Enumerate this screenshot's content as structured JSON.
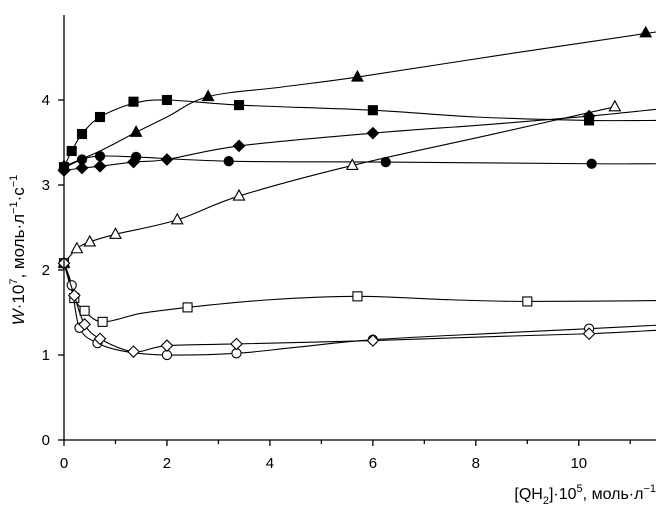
{
  "chart_data": {
    "type": "scatter",
    "title": "",
    "xlabel": {
      "main": "[QH",
      "sub": "2",
      "mid": "]·10",
      "sup": "5",
      "unit": ", моль·л",
      "unit_sup": "−1"
    },
    "ylabel": {
      "main": "W",
      "mid": "·10",
      "sup": "7",
      "unit1": ", моль·л",
      "unit1_sup": "−1",
      "unit2": "·с",
      "unit2_sup": "−1"
    },
    "xlim": [
      0,
      11.5
    ],
    "ylim": [
      0,
      5
    ],
    "xticks": [
      0,
      2,
      4,
      6,
      8,
      10
    ],
    "yticks": [
      0,
      1,
      2,
      3,
      4
    ],
    "grid": false,
    "legend": "none",
    "series": [
      {
        "marker": "filled-triangle",
        "points": [
          [
            0,
            3.22
          ],
          [
            1.4,
            3.62
          ],
          [
            2.8,
            4.04
          ],
          [
            5.7,
            4.27
          ],
          [
            11.3,
            4.79
          ]
        ],
        "curve": [
          [
            0,
            3.22
          ],
          [
            0.7,
            3.4
          ],
          [
            1.4,
            3.62
          ],
          [
            2.0,
            3.8
          ],
          [
            2.8,
            4.04
          ],
          [
            4.2,
            4.15
          ],
          [
            5.7,
            4.27
          ],
          [
            8.5,
            4.53
          ],
          [
            11.5,
            4.8
          ]
        ]
      },
      {
        "marker": "filled-square",
        "points": [
          [
            0,
            3.21
          ],
          [
            0.15,
            3.4
          ],
          [
            0.35,
            3.6
          ],
          [
            0.7,
            3.8
          ],
          [
            1.35,
            3.98
          ],
          [
            2.0,
            4.0
          ],
          [
            3.4,
            3.94
          ],
          [
            6.0,
            3.88
          ],
          [
            10.2,
            3.76
          ]
        ],
        "curve": [
          [
            0,
            3.21
          ],
          [
            0.15,
            3.4
          ],
          [
            0.35,
            3.6
          ],
          [
            0.7,
            3.8
          ],
          [
            1.35,
            3.96
          ],
          [
            2.0,
            4.0
          ],
          [
            3.4,
            3.94
          ],
          [
            6.0,
            3.88
          ],
          [
            8.0,
            3.8
          ],
          [
            10.2,
            3.76
          ],
          [
            11.5,
            3.76
          ]
        ]
      },
      {
        "marker": "filled-diamond",
        "points": [
          [
            0,
            3.17
          ],
          [
            0.35,
            3.2
          ],
          [
            0.7,
            3.22
          ],
          [
            1.35,
            3.27
          ],
          [
            2.0,
            3.3
          ],
          [
            3.4,
            3.46
          ],
          [
            6.0,
            3.61
          ],
          [
            10.2,
            3.81
          ]
        ],
        "curve": [
          [
            0,
            3.17
          ],
          [
            0.35,
            3.2
          ],
          [
            0.7,
            3.22
          ],
          [
            1.35,
            3.27
          ],
          [
            2.0,
            3.3
          ],
          [
            3.4,
            3.46
          ],
          [
            6.0,
            3.61
          ],
          [
            8.2,
            3.71
          ],
          [
            10.2,
            3.81
          ],
          [
            11.5,
            3.89
          ]
        ]
      },
      {
        "marker": "filled-circle",
        "points": [
          [
            0,
            3.2
          ],
          [
            0.35,
            3.3
          ],
          [
            0.7,
            3.34
          ],
          [
            1.4,
            3.33
          ],
          [
            3.2,
            3.28
          ],
          [
            6.25,
            3.27
          ],
          [
            10.25,
            3.25
          ]
        ],
        "curve": [
          [
            0,
            3.2
          ],
          [
            0.35,
            3.3
          ],
          [
            0.7,
            3.34
          ],
          [
            1.4,
            3.33
          ],
          [
            3.2,
            3.28
          ],
          [
            6.25,
            3.27
          ],
          [
            10.25,
            3.25
          ],
          [
            11.5,
            3.25
          ]
        ]
      },
      {
        "marker": "open-triangle",
        "points": [
          [
            0,
            2.08
          ],
          [
            0.25,
            2.25
          ],
          [
            0.5,
            2.33
          ],
          [
            1.0,
            2.42
          ],
          [
            2.2,
            2.59
          ],
          [
            3.4,
            2.87
          ],
          [
            5.6,
            3.23
          ],
          [
            10.7,
            3.92
          ]
        ],
        "curve": [
          [
            0,
            2.08
          ],
          [
            0.25,
            2.25
          ],
          [
            0.5,
            2.33
          ],
          [
            1.0,
            2.42
          ],
          [
            2.2,
            2.59
          ],
          [
            3.4,
            2.87
          ],
          [
            5.6,
            3.23
          ],
          [
            8.2,
            3.58
          ],
          [
            10.7,
            3.92
          ]
        ]
      },
      {
        "marker": "open-square",
        "points": [
          [
            0,
            2.08
          ],
          [
            0.2,
            1.67
          ],
          [
            0.4,
            1.52
          ],
          [
            0.75,
            1.39
          ],
          [
            2.4,
            1.56
          ],
          [
            5.7,
            1.69
          ],
          [
            9.0,
            1.63
          ]
        ],
        "curve": [
          [
            0,
            2.08
          ],
          [
            0.2,
            1.67
          ],
          [
            0.4,
            1.52
          ],
          [
            0.75,
            1.39
          ],
          [
            1.5,
            1.49
          ],
          [
            2.4,
            1.56
          ],
          [
            4.0,
            1.65
          ],
          [
            5.7,
            1.69
          ],
          [
            7.5,
            1.65
          ],
          [
            9.0,
            1.63
          ],
          [
            11.5,
            1.64
          ]
        ]
      },
      {
        "marker": "open-circle",
        "points": [
          [
            0,
            2.08
          ],
          [
            0.15,
            1.82
          ],
          [
            0.3,
            1.32
          ],
          [
            0.65,
            1.14
          ],
          [
            2.0,
            1.0
          ],
          [
            3.35,
            1.02
          ],
          [
            6.0,
            1.18
          ],
          [
            10.2,
            1.31
          ]
        ],
        "curve": [
          [
            0,
            2.08
          ],
          [
            0.15,
            1.82
          ],
          [
            0.3,
            1.32
          ],
          [
            0.65,
            1.14
          ],
          [
            1.2,
            1.04
          ],
          [
            2.0,
            1.0
          ],
          [
            3.35,
            1.02
          ],
          [
            4.5,
            1.09
          ],
          [
            6.0,
            1.18
          ],
          [
            8.5,
            1.26
          ],
          [
            10.2,
            1.31
          ],
          [
            11.5,
            1.35
          ]
        ]
      },
      {
        "marker": "open-diamond",
        "points": [
          [
            0,
            2.08
          ],
          [
            0.2,
            1.7
          ],
          [
            0.4,
            1.36
          ],
          [
            0.7,
            1.19
          ],
          [
            1.35,
            1.04
          ],
          [
            2.0,
            1.11
          ],
          [
            3.35,
            1.13
          ],
          [
            6.0,
            1.17
          ],
          [
            10.2,
            1.25
          ]
        ],
        "curve": [
          [
            0,
            2.08
          ],
          [
            0.2,
            1.7
          ],
          [
            0.4,
            1.36
          ],
          [
            0.7,
            1.19
          ],
          [
            1.35,
            1.04
          ],
          [
            2.0,
            1.11
          ],
          [
            3.35,
            1.13
          ],
          [
            6.0,
            1.17
          ],
          [
            8.5,
            1.22
          ],
          [
            10.2,
            1.25
          ],
          [
            11.5,
            1.29
          ]
        ]
      }
    ]
  }
}
